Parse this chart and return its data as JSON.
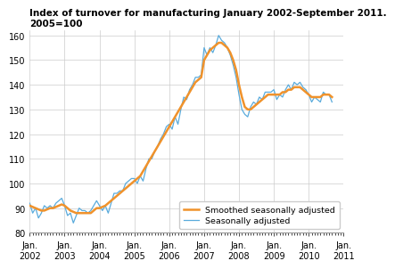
{
  "title_line1": "Index of turnover for manufacturing January 2002-September 2011.",
  "title_line2": "2005=100",
  "ylim": [
    80,
    162
  ],
  "yticks": [
    80,
    90,
    100,
    110,
    120,
    130,
    140,
    150,
    160
  ],
  "smoothed_color": "#f0922b",
  "raw_color": "#5aabdc",
  "legend_labels": [
    "Smoothed seasonally adjusted",
    "Seasonally adjusted"
  ],
  "smoothed": [
    91,
    90.5,
    90,
    89.5,
    89,
    89,
    89.5,
    90,
    90,
    90.5,
    91,
    91.5,
    91,
    90,
    89,
    88.5,
    88,
    88,
    88,
    88,
    88,
    88,
    89,
    90,
    90,
    90.5,
    91,
    92,
    93,
    94,
    95,
    96,
    97,
    98,
    99,
    100,
    101,
    102,
    103,
    105,
    107,
    109,
    111,
    113,
    115,
    117,
    119,
    121,
    123,
    125,
    127,
    129,
    131,
    133,
    135,
    137,
    139,
    141,
    142,
    143,
    150,
    152,
    154,
    155,
    156,
    157,
    157,
    156,
    155,
    153,
    150,
    146,
    140,
    135,
    131,
    130,
    130,
    131,
    132,
    133,
    134,
    135,
    136,
    136,
    136,
    136,
    136,
    137,
    137,
    138,
    138,
    139,
    139,
    139,
    138,
    137,
    136,
    135,
    135,
    135,
    135,
    136,
    136,
    136,
    135
  ],
  "raw": [
    92,
    88,
    90,
    86,
    88,
    91,
    90,
    91,
    90,
    92,
    93,
    94,
    91,
    87,
    88,
    84,
    87,
    90,
    89,
    89,
    88,
    89,
    91,
    93,
    91,
    89,
    91,
    88,
    92,
    96,
    96,
    97,
    97,
    100,
    101,
    102,
    102,
    100,
    103,
    101,
    106,
    110,
    110,
    113,
    115,
    118,
    120,
    123,
    124,
    122,
    127,
    124,
    130,
    135,
    134,
    138,
    140,
    143,
    143,
    144,
    155,
    152,
    155,
    153,
    156,
    160,
    158,
    157,
    155,
    152,
    148,
    143,
    136,
    130,
    128,
    127,
    131,
    133,
    132,
    135,
    134,
    137,
    137,
    137,
    138,
    134,
    136,
    135,
    138,
    140,
    138,
    141,
    140,
    141,
    139,
    138,
    136,
    133,
    135,
    134,
    133,
    137,
    136,
    136,
    133
  ],
  "title_fontsize": 7.5,
  "tick_fontsize": 7,
  "legend_fontsize": 6.8
}
